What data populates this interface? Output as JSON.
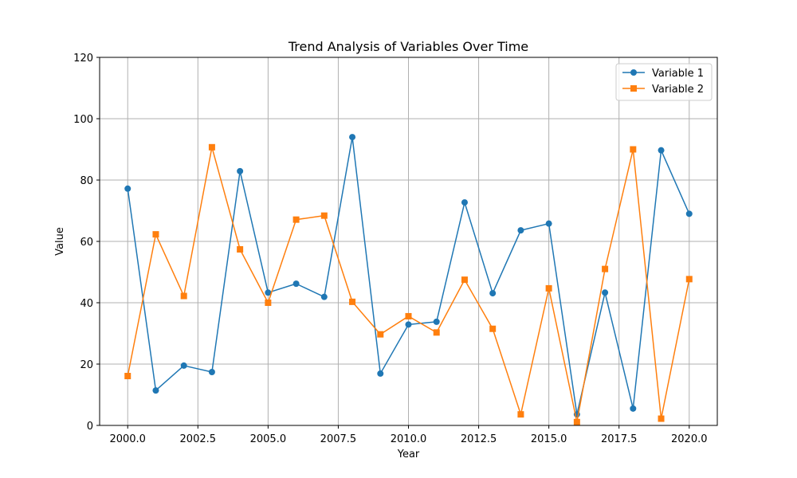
{
  "chart_data": {
    "type": "line",
    "title": "Trend Analysis of Variables Over Time",
    "xlabel": "Year",
    "ylabel": "Value",
    "xlim": [
      1999.0,
      2021.0
    ],
    "ylim": [
      0,
      120
    ],
    "x_ticks": [
      "2000.0",
      "2002.5",
      "2005.0",
      "2007.5",
      "2010.0",
      "2012.5",
      "2015.0",
      "2017.5",
      "2020.0"
    ],
    "y_ticks": [
      "0",
      "20",
      "40",
      "60",
      "80",
      "100",
      "120"
    ],
    "grid": true,
    "legend_position": "top-right",
    "x": [
      2000,
      2001,
      2002,
      2003,
      2004,
      2005,
      2006,
      2007,
      2008,
      2009,
      2010,
      2011,
      2012,
      2013,
      2014,
      2015,
      2016,
      2017,
      2018,
      2019,
      2020
    ],
    "series": [
      {
        "name": "Variable 1",
        "color": "#1f77b4",
        "marker": "circle",
        "values": [
          77.2,
          11.4,
          19.5,
          17.4,
          82.9,
          43.3,
          46.2,
          41.9,
          94.0,
          16.9,
          32.9,
          33.8,
          72.7,
          43.1,
          63.6,
          65.8,
          3.6,
          43.3,
          5.5,
          89.7,
          69.0
        ]
      },
      {
        "name": "Variable 2",
        "color": "#ff7f0e",
        "marker": "square",
        "values": [
          16.1,
          62.3,
          42.2,
          90.7,
          57.4,
          40.0,
          67.1,
          68.4,
          40.3,
          29.7,
          35.6,
          30.3,
          47.5,
          31.5,
          3.6,
          44.7,
          1.1,
          51.0,
          90.0,
          2.2,
          47.7
        ]
      }
    ]
  }
}
